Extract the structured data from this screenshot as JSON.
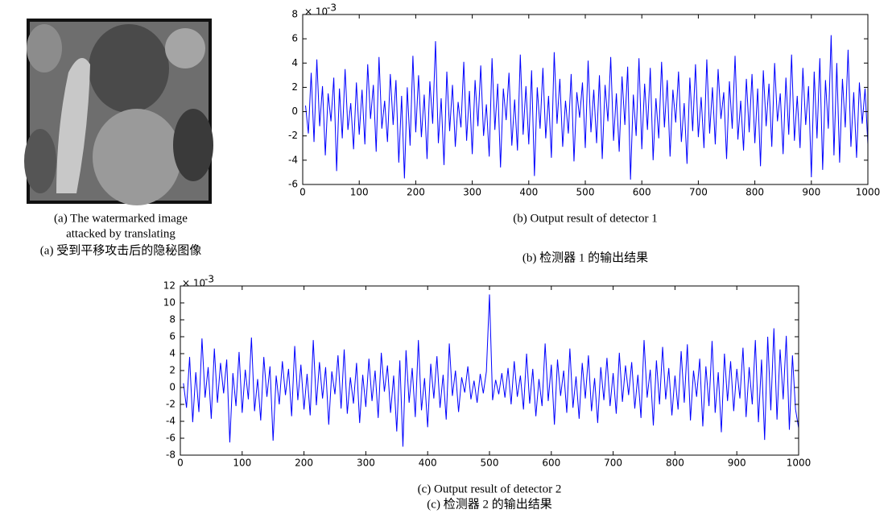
{
  "figure_a": {
    "caption_lines": [
      "(a) The watermarked image",
      "attacked by translating"
    ],
    "caption_zh": "(a) 受到平移攻击后的隐秘图像"
  },
  "chart_data": [
    {
      "type": "line",
      "caption": "(b) Output result of detector 1",
      "caption_zh": "(b)  检测器 1 的输出结果",
      "y_exponent_base": "× 10",
      "y_exponent": "-3",
      "color": "#0000ff",
      "xlim": [
        0,
        1000
      ],
      "xticks": [
        0,
        100,
        200,
        300,
        400,
        500,
        600,
        700,
        800,
        900,
        1000
      ],
      "ylim": [
        -6,
        8
      ],
      "yticks": [
        -6,
        -4,
        -2,
        0,
        2,
        4,
        6,
        8
      ],
      "x": [
        5,
        10,
        15,
        20,
        25,
        30,
        35,
        40,
        45,
        50,
        55,
        60,
        65,
        70,
        75,
        80,
        85,
        90,
        95,
        100,
        105,
        110,
        115,
        120,
        125,
        130,
        135,
        140,
        145,
        150,
        155,
        160,
        165,
        170,
        175,
        180,
        185,
        190,
        195,
        200,
        205,
        210,
        215,
        220,
        225,
        230,
        235,
        240,
        245,
        250,
        255,
        260,
        265,
        270,
        275,
        280,
        285,
        290,
        295,
        300,
        305,
        310,
        315,
        320,
        325,
        330,
        335,
        340,
        345,
        350,
        355,
        360,
        365,
        370,
        375,
        380,
        385,
        390,
        395,
        400,
        405,
        410,
        415,
        420,
        425,
        430,
        435,
        440,
        445,
        450,
        455,
        460,
        465,
        470,
        475,
        480,
        485,
        490,
        495,
        500,
        505,
        510,
        515,
        520,
        525,
        530,
        535,
        540,
        545,
        550,
        555,
        560,
        565,
        570,
        575,
        580,
        585,
        590,
        595,
        600,
        605,
        610,
        615,
        620,
        625,
        630,
        635,
        640,
        645,
        650,
        655,
        660,
        665,
        670,
        675,
        680,
        685,
        690,
        695,
        700,
        705,
        710,
        715,
        720,
        725,
        730,
        735,
        740,
        745,
        750,
        755,
        760,
        765,
        770,
        775,
        780,
        785,
        790,
        795,
        800,
        805,
        810,
        815,
        820,
        825,
        830,
        835,
        840,
        845,
        850,
        855,
        860,
        865,
        870,
        875,
        880,
        885,
        890,
        895,
        900,
        905,
        910,
        915,
        920,
        925,
        930,
        935,
        940,
        945,
        950,
        955,
        960,
        965,
        970,
        975,
        980,
        985,
        990,
        995,
        1000
      ],
      "values": [
        0.5,
        -1.8,
        3.2,
        -2.5,
        4.3,
        -1.2,
        2.1,
        -3.6,
        1.5,
        -0.8,
        2.8,
        -4.9,
        1.9,
        -2.2,
        3.5,
        -1.5,
        0.7,
        -3.1,
        2.4,
        -1.9,
        1.8,
        -2.7,
        3.9,
        -0.6,
        2.2,
        -3.3,
        4.5,
        -1.4,
        0.9,
        -2.5,
        3.1,
        -1.1,
        2.6,
        -4.2,
        1.3,
        -5.5,
        2.0,
        -2.8,
        4.6,
        -1.7,
        3.0,
        -2.1,
        1.4,
        -3.9,
        2.5,
        -1.0,
        5.8,
        -2.6,
        1.1,
        -4.4,
        3.3,
        -1.6,
        2.2,
        -2.9,
        0.8,
        -1.3,
        4.1,
        -2.4,
        1.7,
        -3.5,
        2.6,
        -1.2,
        3.8,
        -2.0,
        0.6,
        -3.7,
        4.4,
        -1.5,
        2.3,
        -4.6,
        1.9,
        -0.7,
        3.2,
        -2.8,
        1.0,
        -3.2,
        4.7,
        -1.9,
        2.1,
        -2.7,
        3.4,
        -5.3,
        2.0,
        -1.4,
        3.6,
        -2.2,
        1.3,
        -3.8,
        4.9,
        -1.0,
        2.7,
        -2.9,
        0.9,
        -1.8,
        3.1,
        -4.1,
        1.6,
        -0.5,
        2.4,
        -3.0,
        4.2,
        -1.7,
        1.8,
        -2.6,
        3.0,
        -3.9,
        2.2,
        -0.8,
        4.5,
        -2.4,
        1.5,
        -3.3,
        2.9,
        -1.1,
        3.7,
        -5.6,
        1.4,
        -2.0,
        4.4,
        -3.1,
        2.3,
        -1.5,
        3.6,
        -4.0,
        1.1,
        -2.2,
        4.1,
        -1.3,
        2.6,
        -3.7,
        1.8,
        -0.9,
        3.3,
        -2.5,
        0.7,
        -4.3,
        2.8,
        -1.6,
        3.9,
        -2.1,
        1.2,
        -3.0,
        4.3,
        -1.8,
        2.0,
        -2.7,
        3.5,
        -0.6,
        1.6,
        -3.9,
        2.5,
        -1.4,
        4.6,
        -2.3,
        0.9,
        -3.2,
        2.7,
        -1.7,
        3.1,
        -2.6,
        1.9,
        -4.5,
        3.4,
        -1.2,
        2.3,
        -2.9,
        4.0,
        -0.8,
        1.5,
        -3.5,
        2.8,
        -1.9,
        4.7,
        -2.4,
        1.3,
        -3.0,
        3.6,
        -1.1,
        2.1,
        -5.4,
        3.3,
        -2.2,
        4.4,
        -4.8,
        2.6,
        -1.4,
        6.3,
        -3.6,
        4.0,
        -4.2,
        2.7,
        -1.3,
        5.1,
        -2.9,
        1.6,
        -3.8,
        2.4,
        -1.0,
        1.9,
        -2.7
      ]
    },
    {
      "type": "line",
      "caption": "(c) Output result of detector 2",
      "caption_zh": "(c)  检测器 2 的输出结果",
      "y_exponent_base": "× 10",
      "y_exponent": "-3",
      "color": "#0000ff",
      "xlim": [
        0,
        1000
      ],
      "xticks": [
        0,
        100,
        200,
        300,
        400,
        500,
        600,
        700,
        800,
        900,
        1000
      ],
      "ylim": [
        -8,
        12
      ],
      "yticks": [
        -8,
        -6,
        -4,
        -2,
        0,
        2,
        4,
        6,
        8,
        10,
        12
      ],
      "x": [
        5,
        10,
        15,
        20,
        25,
        30,
        35,
        40,
        45,
        50,
        55,
        60,
        65,
        70,
        75,
        80,
        85,
        90,
        95,
        100,
        105,
        110,
        115,
        120,
        125,
        130,
        135,
        140,
        145,
        150,
        155,
        160,
        165,
        170,
        175,
        180,
        185,
        190,
        195,
        200,
        205,
        210,
        215,
        220,
        225,
        230,
        235,
        240,
        245,
        250,
        255,
        260,
        265,
        270,
        275,
        280,
        285,
        290,
        295,
        300,
        305,
        310,
        315,
        320,
        325,
        330,
        335,
        340,
        345,
        350,
        355,
        360,
        365,
        370,
        375,
        380,
        385,
        390,
        395,
        400,
        405,
        410,
        415,
        420,
        425,
        430,
        435,
        440,
        445,
        450,
        455,
        460,
        465,
        470,
        475,
        480,
        485,
        490,
        495,
        500,
        505,
        510,
        515,
        520,
        525,
        530,
        535,
        540,
        545,
        550,
        555,
        560,
        565,
        570,
        575,
        580,
        585,
        590,
        595,
        600,
        605,
        610,
        615,
        620,
        625,
        630,
        635,
        640,
        645,
        650,
        655,
        660,
        665,
        670,
        675,
        680,
        685,
        690,
        695,
        700,
        705,
        710,
        715,
        720,
        725,
        730,
        735,
        740,
        745,
        750,
        755,
        760,
        765,
        770,
        775,
        780,
        785,
        790,
        795,
        800,
        805,
        810,
        815,
        820,
        825,
        830,
        835,
        840,
        845,
        850,
        855,
        860,
        865,
        870,
        875,
        880,
        885,
        890,
        895,
        900,
        905,
        910,
        915,
        920,
        925,
        930,
        935,
        940,
        945,
        950,
        955,
        960,
        965,
        970,
        975,
        980,
        985,
        990,
        995,
        1000
      ],
      "values": [
        0.5,
        -2.4,
        3.6,
        -4.1,
        1.8,
        -2.9,
        5.8,
        -1.2,
        2.4,
        -3.7,
        4.6,
        -1.8,
        2.9,
        -0.7,
        3.3,
        -6.5,
        1.7,
        -2.2,
        4.2,
        -3.0,
        2.1,
        -1.4,
        5.9,
        -2.8,
        1.0,
        -3.9,
        3.6,
        -1.1,
        2.5,
        -6.3,
        1.4,
        -2.0,
        3.1,
        -0.9,
        2.2,
        -3.4,
        4.9,
        -1.5,
        2.7,
        -2.6,
        1.6,
        -3.3,
        5.6,
        -2.1,
        3.0,
        -1.3,
        2.4,
        -4.4,
        1.9,
        -0.8,
        3.8,
        -2.5,
        4.5,
        -3.1,
        1.2,
        -1.9,
        2.9,
        -4.2,
        1.5,
        -2.3,
        3.4,
        -1.6,
        2.0,
        -3.6,
        4.1,
        -0.5,
        2.6,
        -3.0,
        1.4,
        -5.2,
        3.2,
        -7.0,
        4.4,
        -1.8,
        2.3,
        -3.5,
        5.6,
        -2.7,
        1.1,
        -4.7,
        2.8,
        -1.3,
        3.7,
        -2.4,
        1.5,
        -3.8,
        5.2,
        -1.0,
        2.0,
        -2.9,
        1.2,
        -0.6,
        2.5,
        -1.4,
        0.8,
        -1.8,
        1.6,
        -0.7,
        1.9,
        11.0,
        -1.5,
        0.9,
        -0.8,
        1.7,
        -1.2,
        2.3,
        -2.0,
        3.1,
        -1.1,
        1.4,
        -2.6,
        4.0,
        -1.9,
        2.2,
        -3.4,
        1.0,
        -2.2,
        5.2,
        -1.6,
        2.7,
        -4.4,
        3.3,
        -1.0,
        2.0,
        -3.0,
        4.6,
        -2.4,
        1.3,
        -3.7,
        2.9,
        -1.3,
        3.8,
        -2.8,
        1.1,
        -4.2,
        2.4,
        -1.5,
        3.5,
        -2.2,
        1.7,
        -3.1,
        4.1,
        -1.7,
        2.6,
        -0.9,
        3.0,
        -2.5,
        1.5,
        -3.6,
        5.6,
        -1.2,
        2.1,
        -4.5,
        3.2,
        -2.0,
        4.8,
        -1.4,
        2.3,
        -3.3,
        1.4,
        -2.6,
        4.3,
        -1.8,
        5.1,
        -3.9,
        2.0,
        -1.1,
        3.4,
        -4.6,
        2.5,
        -2.2,
        5.5,
        -3.0,
        1.8,
        -5.3,
        4.0,
        -1.6,
        3.1,
        -2.8,
        2.2,
        -1.3,
        4.7,
        -3.5,
        2.4,
        -2.0,
        5.6,
        -4.1,
        3.3,
        -6.2,
        6.0,
        -2.7,
        7.0,
        -3.8,
        4.5,
        -1.4,
        6.1,
        -5.0,
        3.8,
        -2.6,
        -4.8
      ]
    }
  ]
}
